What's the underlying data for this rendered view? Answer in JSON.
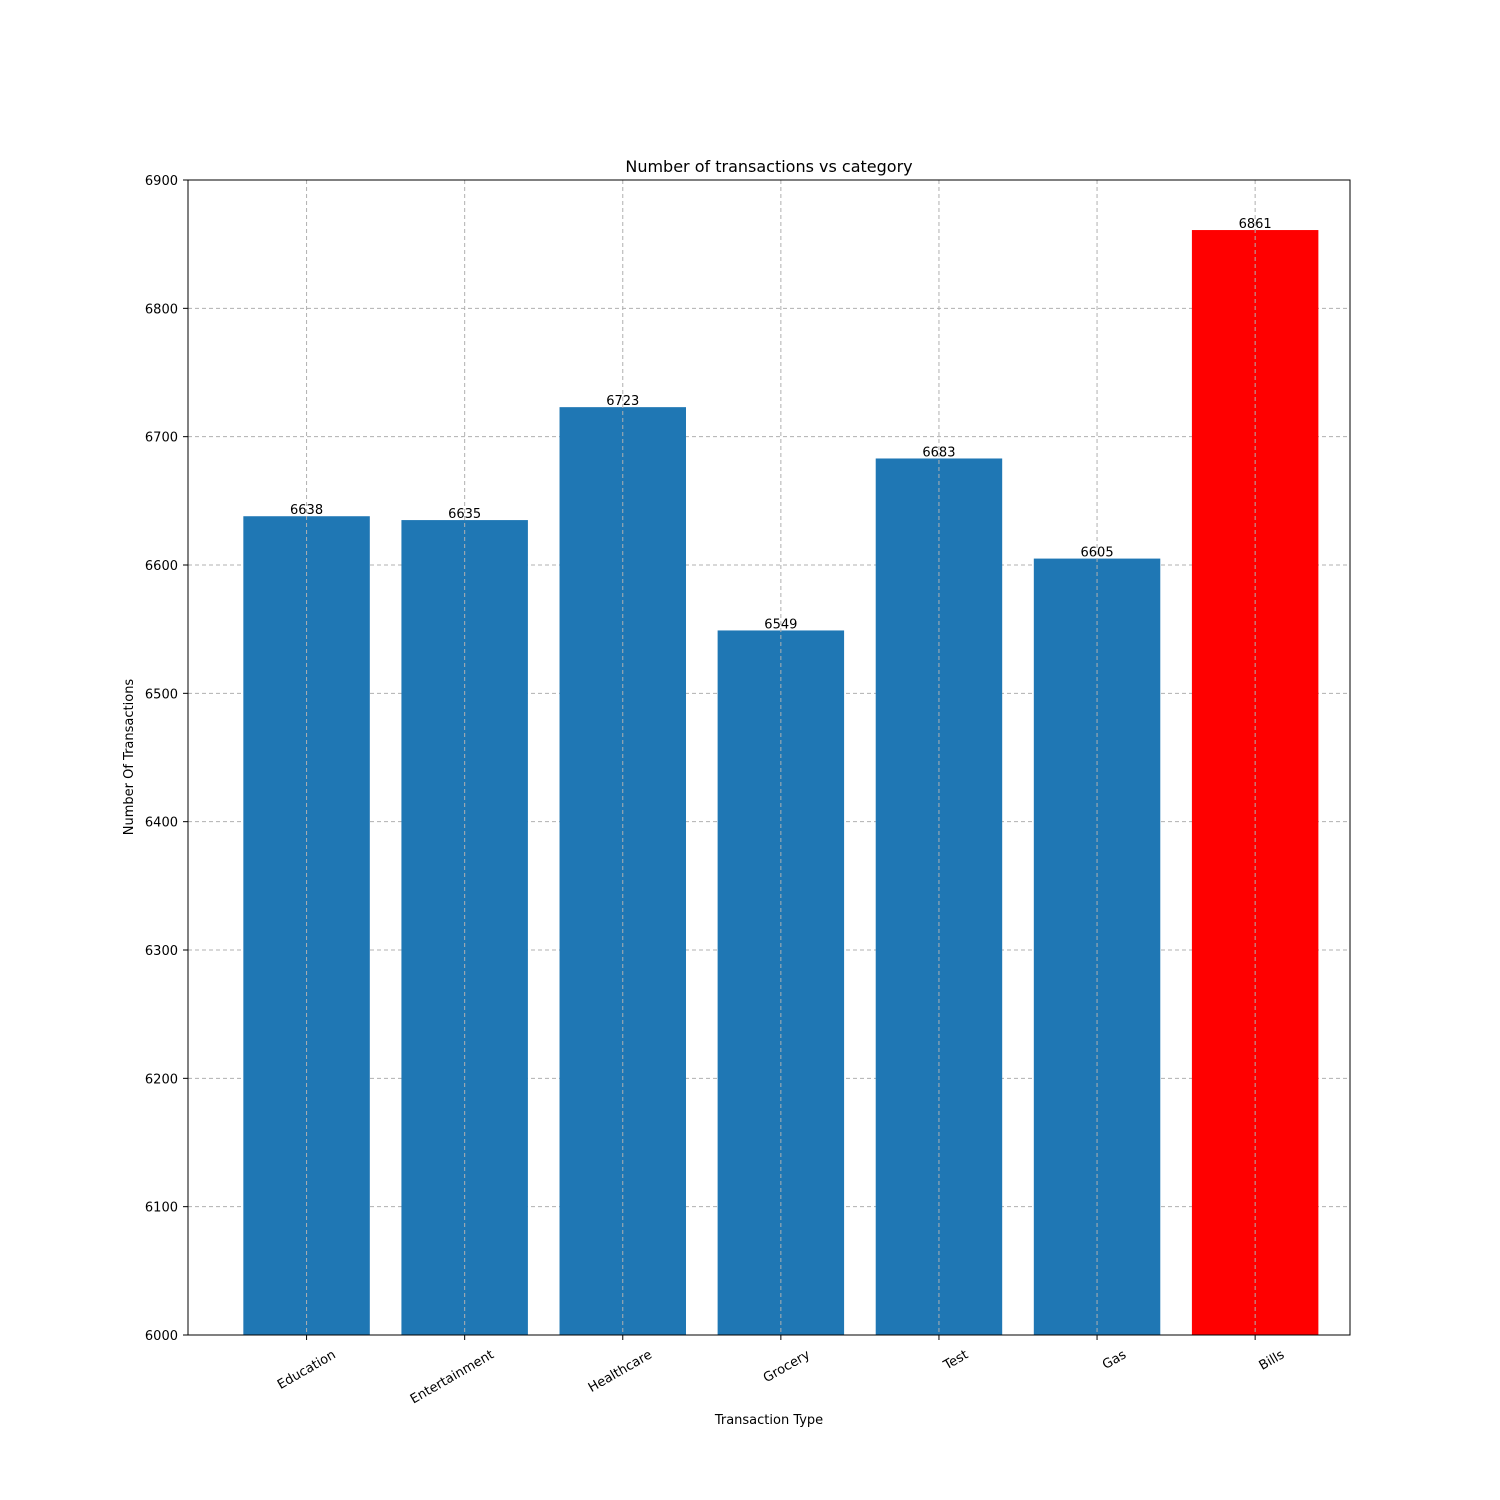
{
  "chart_data": {
    "type": "bar",
    "title": "Number of transactions vs category",
    "xlabel": "Transaction Type",
    "ylabel": "Number Of Transactions",
    "categories": [
      "Education",
      "Entertainment",
      "Healthcare",
      "Grocery",
      "Test",
      "Gas",
      "Bills"
    ],
    "values": [
      6638,
      6635,
      6723,
      6549,
      6683,
      6605,
      6861
    ],
    "colors": [
      "#1f77b4",
      "#1f77b4",
      "#1f77b4",
      "#1f77b4",
      "#1f77b4",
      "#1f77b4",
      "#ff0000"
    ],
    "ylim": [
      6000,
      6900
    ],
    "yticks": [
      6000,
      6100,
      6200,
      6300,
      6400,
      6500,
      6600,
      6700,
      6800,
      6900
    ],
    "grid": true,
    "legend": "none",
    "xtick_rotation": 30
  }
}
